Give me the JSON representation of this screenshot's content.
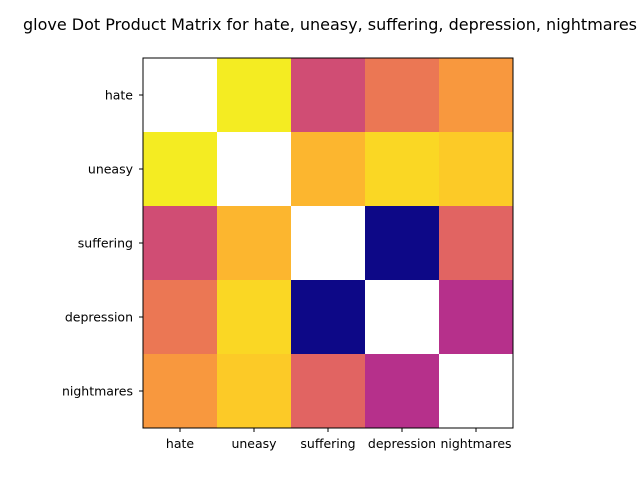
{
  "chart_data": {
    "type": "heatmap",
    "title": "glove Dot Product Matrix for hate, uneasy, suffering, depression, nightmares",
    "xlabel": "",
    "ylabel": "",
    "x_categories": [
      "hate",
      "uneasy",
      "suffering",
      "depression",
      "nightmares"
    ],
    "y_categories": [
      "hate",
      "uneasy",
      "suffering",
      "depression",
      "nightmares"
    ],
    "colormap": "plasma",
    "grid": false,
    "diagonal": "blank",
    "values": [
      [
        null,
        0.97,
        0.52,
        0.66,
        0.76
      ],
      [
        0.97,
        null,
        0.84,
        0.92,
        0.89
      ],
      [
        0.52,
        0.84,
        null,
        0.0,
        0.6
      ],
      [
        0.66,
        0.92,
        0.0,
        null,
        0.42
      ],
      [
        0.76,
        0.89,
        0.6,
        0.42,
        null
      ]
    ]
  }
}
